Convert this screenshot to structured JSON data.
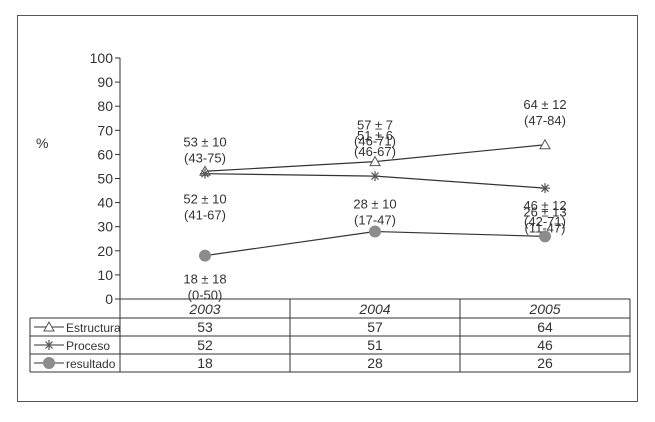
{
  "chart_data": {
    "type": "line",
    "ylabel": "%",
    "ylim": [
      0,
      100
    ],
    "yticks": [
      0,
      10,
      20,
      30,
      40,
      50,
      60,
      70,
      80,
      90,
      100
    ],
    "categories": [
      "2003",
      "2004",
      "2005"
    ],
    "grid": false,
    "series": [
      {
        "name": "Estructura",
        "marker": "triangle-open",
        "values": [
          53,
          57,
          64
        ],
        "labels": [
          [
            "53 ± 10",
            "(43-75)"
          ],
          [
            "57 ± 7",
            "(46-71)"
          ],
          [
            "64 ± 12",
            "(47-84)"
          ]
        ]
      },
      {
        "name": "Proceso",
        "marker": "asterisk",
        "values": [
          52,
          51,
          46
        ],
        "labels": [
          [
            "52 ± 10",
            "(41-67)"
          ],
          [
            "51 ± 6",
            "(46-67)"
          ],
          [
            "46 ± 12",
            "(42-71)"
          ]
        ]
      },
      {
        "name": "resultado",
        "marker": "circle-filled",
        "values": [
          18,
          28,
          26
        ],
        "labels": [
          [
            "18 ± 18",
            "(0-50)"
          ],
          [
            "28 ± 10",
            "(17-47)"
          ],
          [
            "26 ± 13",
            "(11-47)"
          ]
        ]
      }
    ],
    "colors": {
      "line": "#333333",
      "marker_fill": "#8c8c8c",
      "marker_stroke": "#555555"
    }
  }
}
